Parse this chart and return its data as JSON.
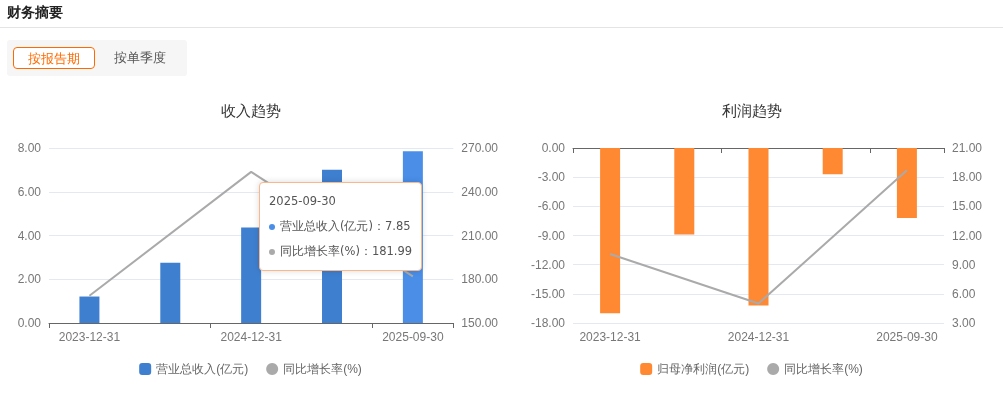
{
  "chart_data": [
    {
      "type": "other",
      "title": "财务摘要",
      "annotations": [
        "按报告期",
        "按单季度"
      ]
    },
    {
      "type": "bar",
      "title": "收入趋势",
      "categories": [
        "2023-12-31",
        null,
        "2024-12-31",
        null,
        "2025-09-30"
      ],
      "series": [
        {
          "type": "bar",
          "name": "营业总收入(亿元)",
          "colors": [
            "#3f7fcf",
            "#3f7fcf",
            "#3f7fcf",
            "#3f7fcf",
            "#4a8ee8"
          ],
          "color": "#3f7fcf",
          "values": [
            1.21,
            2.76,
            4.37,
            7.01,
            7.85
          ]
        },
        {
          "type": "line",
          "name": "同比增长率(%)",
          "color": "#aaaaaa",
          "axis": "y2",
          "values": [
            168.7,
            null,
            253.6,
            null,
            181.99
          ]
        }
      ],
      "ylim": [
        0,
        8
      ],
      "yticks": [
        {
          "value": 0,
          "label": "0.00"
        },
        {
          "value": 2,
          "label": "2.00"
        },
        {
          "value": 4,
          "label": "4.00"
        },
        {
          "value": 6,
          "label": "6.00"
        },
        {
          "value": 8,
          "label": "8.00"
        }
      ],
      "y2lim": [
        150,
        270
      ],
      "y2ticks": [
        {
          "value": 150,
          "label": "150.00"
        },
        {
          "value": 180,
          "label": "180.00"
        },
        {
          "value": 210,
          "label": "210.00"
        },
        {
          "value": 240,
          "label": "240.00"
        },
        {
          "value": 270,
          "label": "270.00"
        }
      ],
      "grid": "y",
      "legend": "bottom",
      "marker": "none",
      "annotations": [
        "2025-09-30",
        "营业总收入(亿元)：7.85",
        "同比增长率(%)：181.99"
      ]
    },
    {
      "type": "bar",
      "title": "利润趋势",
      "categories": [
        "2023-12-31",
        null,
        "2024-12-31",
        null,
        "2025-09-30"
      ],
      "series": [
        {
          "type": "bar",
          "name": "归母净利润(亿元)",
          "color": "#ff8833",
          "values": [
            -17.0,
            -8.9,
            -16.2,
            -2.7,
            -7.2
          ]
        },
        {
          "type": "line",
          "name": "同比增长率(%)",
          "color": "#aaaaaa",
          "axis": "y2",
          "values": [
            10.1,
            null,
            5.0,
            null,
            18.7
          ]
        }
      ],
      "ylim": [
        -18,
        0
      ],
      "yticks": [
        {
          "value": -18,
          "label": "-18.00"
        },
        {
          "value": -15,
          "label": "-15.00"
        },
        {
          "value": -12,
          "label": "-12.00"
        },
        {
          "value": -9,
          "label": "-9.00"
        },
        {
          "value": -6,
          "label": "-6.00"
        },
        {
          "value": -3,
          "label": "-3.00"
        },
        {
          "value": 0,
          "label": "0.00"
        }
      ],
      "y2lim": [
        3,
        21
      ],
      "y2ticks": [
        {
          "value": 3,
          "label": "3.00"
        },
        {
          "value": 6,
          "label": "6.00"
        },
        {
          "value": 9,
          "label": "9.00"
        },
        {
          "value": 12,
          "label": "12.00"
        },
        {
          "value": 15,
          "label": "15.00"
        },
        {
          "value": 18,
          "label": "18.00"
        },
        {
          "value": 21,
          "label": "21.00"
        }
      ],
      "grid": "y",
      "legend": "bottom",
      "marker": "none"
    }
  ]
}
